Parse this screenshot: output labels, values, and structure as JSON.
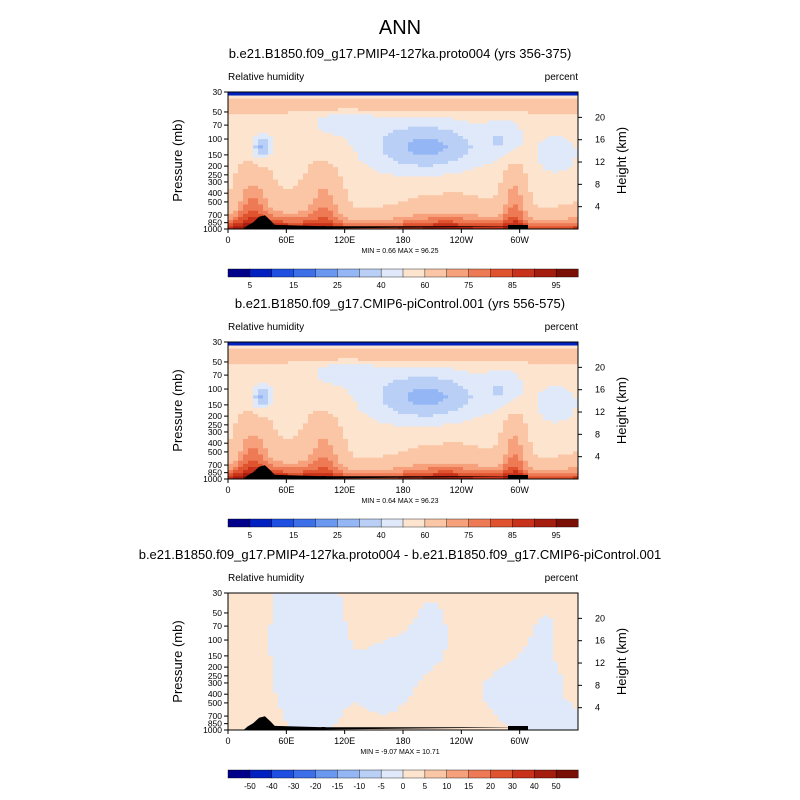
{
  "figure_title": "ANN",
  "chart_data": [
    {
      "type": "heatmap",
      "title": "b.e21.B1850.f09_g17.PMIP4-127ka.proto004 (yrs 356-375)",
      "left_label": "Relative humidity",
      "right_label": "percent",
      "ylabel": "Pressure (mb)",
      "right_axis_label": "Height (km)",
      "x_ticks": [
        "0",
        "60E",
        "120E",
        "180",
        "120W",
        "60W"
      ],
      "y_ticks": [
        "1000",
        "850",
        "700",
        "500",
        "400",
        "300",
        "250",
        "200",
        "150",
        "100",
        "70",
        "50",
        "30"
      ],
      "height_ticks": [
        "4",
        "8",
        "12",
        "16",
        "20"
      ],
      "stats": "MIN =  0.66  MAX =  96.25",
      "min": 0.66,
      "max": 96.25,
      "colorbar_labels": [
        "5",
        "15",
        "25",
        "40",
        "60",
        "75",
        "85",
        "95"
      ],
      "colorbar_levels": [
        5,
        10,
        15,
        20,
        25,
        30,
        40,
        50,
        60,
        70,
        75,
        80,
        85,
        90,
        95
      ],
      "colorbar_colors": [
        "#00008b",
        "#0020c0",
        "#1f4fe0",
        "#3d6fe8",
        "#6a97f0",
        "#94b6f4",
        "#b9cff6",
        "#dfe9fa",
        "#fde4cf",
        "#fbc6a6",
        "#f6a07c",
        "#ee7a55",
        "#e0532f",
        "#c8321a",
        "#a51d0e",
        "#7a0f05"
      ],
      "variant": "base"
    },
    {
      "type": "heatmap",
      "title": "b.e21.B1850.f09_g17.CMIP6-piControl.001 (yrs 556-575)",
      "left_label": "Relative humidity",
      "right_label": "percent",
      "ylabel": "Pressure (mb)",
      "right_axis_label": "Height (km)",
      "x_ticks": [
        "0",
        "60E",
        "120E",
        "180",
        "120W",
        "60W"
      ],
      "y_ticks": [
        "1000",
        "850",
        "700",
        "500",
        "400",
        "300",
        "250",
        "200",
        "150",
        "100",
        "70",
        "50",
        "30"
      ],
      "height_ticks": [
        "4",
        "8",
        "12",
        "16",
        "20"
      ],
      "stats": "MIN =  0.64  MAX =  96.23",
      "min": 0.64,
      "max": 96.23,
      "colorbar_labels": [
        "5",
        "15",
        "25",
        "40",
        "60",
        "75",
        "85",
        "95"
      ],
      "colorbar_levels": [
        5,
        10,
        15,
        20,
        25,
        30,
        40,
        50,
        60,
        70,
        75,
        80,
        85,
        90,
        95
      ],
      "colorbar_colors": [
        "#00008b",
        "#0020c0",
        "#1f4fe0",
        "#3d6fe8",
        "#6a97f0",
        "#94b6f4",
        "#b9cff6",
        "#dfe9fa",
        "#fde4cf",
        "#fbc6a6",
        "#f6a07c",
        "#ee7a55",
        "#e0532f",
        "#c8321a",
        "#a51d0e",
        "#7a0f05"
      ],
      "variant": "base"
    },
    {
      "type": "heatmap",
      "title": "b.e21.B1850.f09_g17.PMIP4-127ka.proto004 - b.e21.B1850.f09_g17.CMIP6-piControl.001",
      "left_label": "Relative humidity",
      "right_label": "percent",
      "ylabel": "Pressure (mb)",
      "right_axis_label": "Height (km)",
      "x_ticks": [
        "0",
        "60E",
        "120E",
        "180",
        "120W",
        "60W"
      ],
      "y_ticks": [
        "1000",
        "850",
        "700",
        "500",
        "400",
        "300",
        "250",
        "200",
        "150",
        "100",
        "70",
        "50",
        "30"
      ],
      "height_ticks": [
        "4",
        "8",
        "12",
        "16",
        "20"
      ],
      "stats": "MIN = -9.07  MAX =  10.71",
      "min": -9.07,
      "max": 10.71,
      "colorbar_labels": [
        "-50",
        "-40",
        "-30",
        "-20",
        "-15",
        "-10",
        "-5",
        "0",
        "5",
        "10",
        "15",
        "20",
        "30",
        "40",
        "50"
      ],
      "colorbar_levels": [
        -50,
        -40,
        -30,
        -20,
        -15,
        -10,
        -5,
        0,
        5,
        10,
        15,
        20,
        30,
        40,
        50
      ],
      "colorbar_colors": [
        "#00008b",
        "#0020c0",
        "#1f4fe0",
        "#3d6fe8",
        "#6a97f0",
        "#94b6f4",
        "#b9cff6",
        "#dfe9fa",
        "#fde4cf",
        "#fbc6a6",
        "#f6a07c",
        "#ee7a55",
        "#e0532f",
        "#c8321a",
        "#a51d0e",
        "#7a0f05"
      ],
      "variant": "diff"
    }
  ]
}
